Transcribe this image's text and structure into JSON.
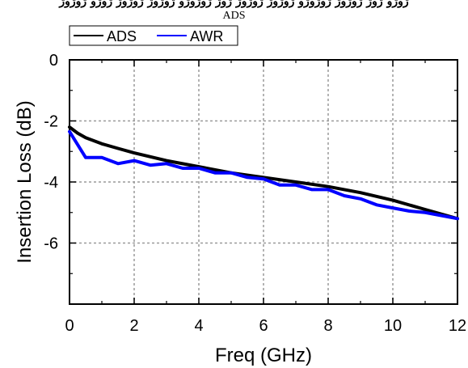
{
  "header": {
    "garbled_text": "ژوژو ژوژ ژوژوژ ژوژوژو ژوژوژ ژوژوژ ژوژ ژوژوژو ژوژوژ ژوژوژ ژوژو ژوژوژ"
  },
  "chart_data": {
    "type": "line",
    "title": "ADS",
    "xlabel": "Freq (GHz)",
    "ylabel": "Insertion Loss (dB)",
    "xlim": [
      0,
      12
    ],
    "ylim": [
      -8,
      0
    ],
    "xticks": [
      0,
      2,
      4,
      6,
      8,
      10,
      12
    ],
    "yticks": [
      -6,
      -4,
      -2,
      0
    ],
    "x_tick_labels": [
      "0",
      "2",
      "4",
      "6",
      "8",
      "10",
      "12"
    ],
    "y_tick_labels": [
      "-6",
      "-4",
      "-2",
      "0"
    ],
    "grid": true,
    "legend_position": "top-left",
    "series": [
      {
        "name": "ADS",
        "color": "#000000",
        "x": [
          0,
          0.25,
          0.5,
          1,
          1.5,
          2,
          3,
          4,
          5,
          6,
          7,
          8,
          9,
          10,
          11,
          12
        ],
        "y": [
          -2.2,
          -2.4,
          -2.55,
          -2.75,
          -2.9,
          -3.05,
          -3.3,
          -3.5,
          -3.7,
          -3.85,
          -4.0,
          -4.15,
          -4.35,
          -4.6,
          -4.9,
          -5.2
        ]
      },
      {
        "name": "AWR",
        "color": "#0000ff",
        "x": [
          0,
          0.5,
          1,
          1.5,
          2,
          2.5,
          3,
          3.5,
          4,
          4.5,
          5,
          5.5,
          6,
          6.5,
          7,
          7.5,
          8,
          8.5,
          9,
          9.5,
          10,
          10.5,
          11,
          11.5,
          12
        ],
        "y": [
          -2.35,
          -3.2,
          -3.2,
          -3.4,
          -3.3,
          -3.45,
          -3.4,
          -3.55,
          -3.55,
          -3.7,
          -3.7,
          -3.85,
          -3.9,
          -4.1,
          -4.1,
          -4.25,
          -4.25,
          -4.45,
          -4.55,
          -4.75,
          -4.85,
          -4.95,
          -5.0,
          -5.1,
          -5.2
        ]
      }
    ]
  }
}
